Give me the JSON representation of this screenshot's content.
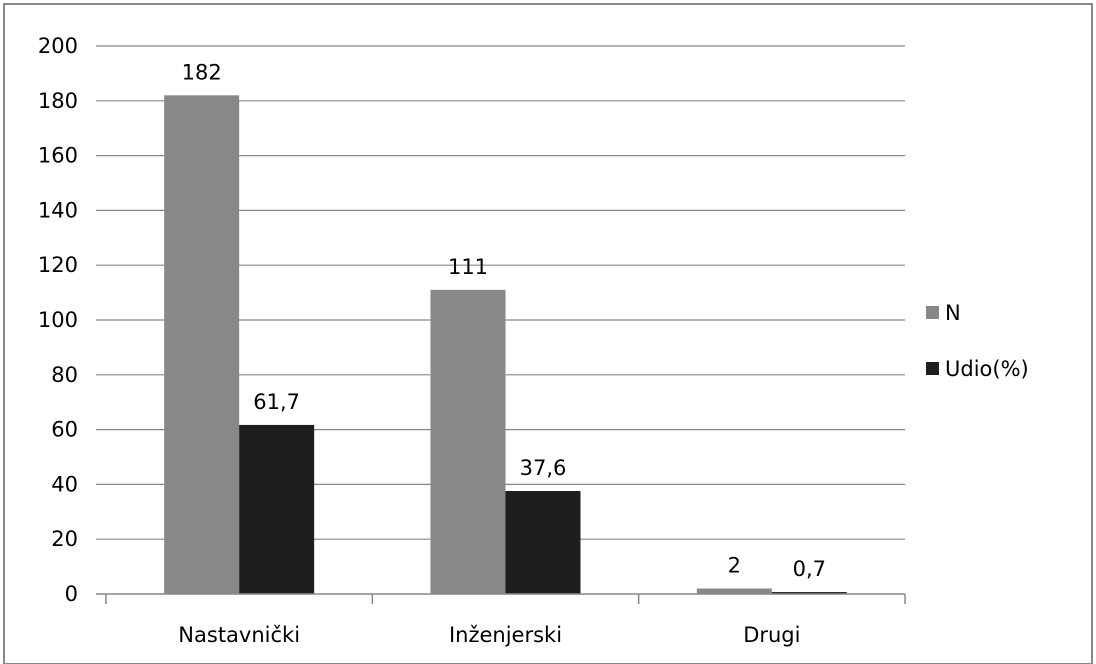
{
  "chart_data": {
    "type": "bar",
    "categories": [
      "Nastavnički",
      "Inženjerski",
      "Drugi"
    ],
    "series": [
      {
        "name": "N",
        "values": [
          182,
          111,
          2
        ],
        "labels": [
          "182",
          "111",
          "2"
        ],
        "color": "#888888"
      },
      {
        "name": "Udio(%)",
        "values": [
          61.7,
          37.6,
          0.7
        ],
        "labels": [
          "61,7",
          "37,6",
          "0,7"
        ],
        "color": "#1e1e1e"
      }
    ],
    "yticks": [
      "0",
      "20",
      "40",
      "60",
      "80",
      "100",
      "120",
      "140",
      "160",
      "180",
      "200"
    ],
    "ylim": [
      0,
      200
    ],
    "grid": true,
    "legend_position": "right",
    "colors": {
      "gridline": "#888888",
      "border": "#888888",
      "axis": "#888888"
    }
  }
}
